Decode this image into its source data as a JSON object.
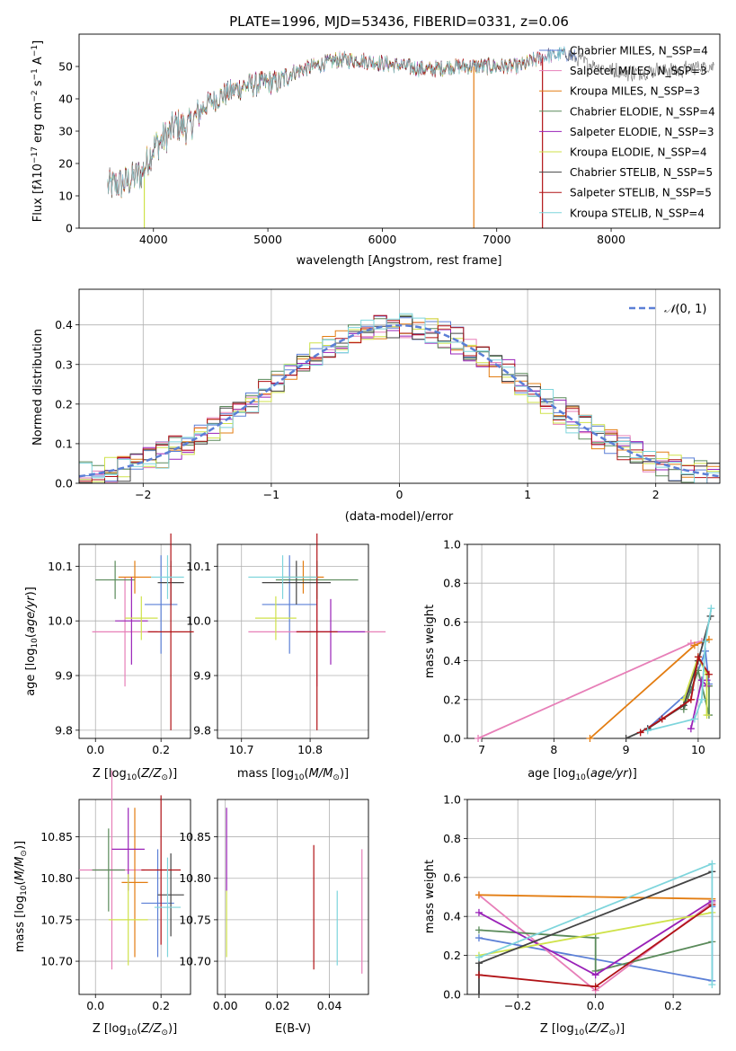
{
  "colors": {
    "series": [
      "#5b7fd6",
      "#e77fb8",
      "#e37d12",
      "#5a8a5a",
      "#9a22b8",
      "#cfe24a",
      "#444444",
      "#b11216",
      "#7ed5dc"
    ]
  },
  "chart_data": [
    {
      "type": "line",
      "title": "PLATE=1996, MJD=53436, FIBERID=0331, z=0.06",
      "xlabel": "wavelength [Angstrom, rest frame]",
      "ylabel": "Flux [f_λ 10^-17 erg cm^-2 s^-1 A^-1]",
      "xlim": [
        3350,
        8950
      ],
      "ylim": [
        0,
        60
      ],
      "xticks": [
        4000,
        5000,
        6000,
        7000,
        8000
      ],
      "yticks": [
        0,
        10,
        20,
        30,
        40,
        50
      ],
      "continuum": [
        [
          3600,
          13
        ],
        [
          3750,
          14
        ],
        [
          3900,
          17
        ],
        [
          4000,
          25
        ],
        [
          4100,
          28
        ],
        [
          4200,
          32
        ],
        [
          4300,
          31
        ],
        [
          4450,
          38
        ],
        [
          4600,
          41
        ],
        [
          4800,
          44
        ],
        [
          5000,
          45
        ],
        [
          5100,
          45
        ],
        [
          5200,
          48
        ],
        [
          5400,
          50
        ],
        [
          5600,
          52
        ],
        [
          5800,
          52
        ],
        [
          6000,
          51
        ],
        [
          6200,
          50
        ],
        [
          6400,
          49
        ],
        [
          6600,
          50
        ],
        [
          6800,
          50
        ],
        [
          7000,
          50
        ],
        [
          7200,
          50
        ],
        [
          7400,
          53
        ],
        [
          7600,
          54
        ],
        [
          7800,
          51
        ],
        [
          8000,
          49
        ],
        [
          8200,
          48
        ],
        [
          8400,
          49
        ],
        [
          8600,
          49
        ],
        [
          8800,
          50
        ]
      ],
      "legend": [
        "Chabrier MILES, N_SSP=4",
        "Salpeter MILES, N_SSP=3",
        "Kroupa MILES, N_SSP=3",
        "Chabrier ELODIE, N_SSP=4",
        "Salpeter ELODIE, N_SSP=3",
        "Kroupa ELODIE, N_SSP=4",
        "Chabrier STELIB, N_SSP=5",
        "Salpeter STELIB, N_SSP=5",
        "Kroupa STELIB, N_SSP=4"
      ],
      "legend_position": "right",
      "grid": false
    },
    {
      "type": "line",
      "xlabel": "(data-model)/error",
      "ylabel": "Normed distribution",
      "xlim": [
        -2.5,
        2.5
      ],
      "ylim": [
        0,
        0.49
      ],
      "xticks": [
        -2,
        -1,
        0,
        1,
        2
      ],
      "yticks": [
        0.0,
        0.1,
        0.2,
        0.3,
        0.4
      ],
      "bins": {
        "start": -2.5,
        "width": 0.1,
        "count": 50
      },
      "legend": [
        "N(0,1)"
      ],
      "legend_position": "top-right",
      "grid": true
    },
    {
      "type": "scatter",
      "xlabel": "Z [log10(Z/Z⊙)]",
      "ylabel": "age  [log10(age/yr)]",
      "xlim": [
        -0.05,
        0.29
      ],
      "ylim": [
        9.785,
        10.14
      ],
      "xticks": [
        0.0,
        0.2
      ],
      "yticks": [
        9.8,
        9.9,
        10.0,
        10.1
      ],
      "points": [
        {
          "x": 0.2,
          "xerr": 0.05,
          "y": 10.03,
          "yerr": 0.09
        },
        {
          "x": 0.09,
          "xerr": 0.1,
          "y": 9.98,
          "yerr": 0.1
        },
        {
          "x": 0.12,
          "xerr": 0.05,
          "y": 10.08,
          "yerr": 0.03
        },
        {
          "x": 0.06,
          "xerr": 0.06,
          "y": 10.075,
          "yerr": 0.035
        },
        {
          "x": 0.11,
          "xerr": 0.05,
          "y": 10.0,
          "yerr": 0.08
        },
        {
          "x": 0.14,
          "xerr": 0.05,
          "y": 10.005,
          "yerr": 0.04
        },
        {
          "x": 0.23,
          "xerr": 0.04,
          "y": 10.07,
          "yerr": 0.04
        },
        {
          "x": 0.23,
          "xerr": 0.07,
          "y": 9.98,
          "yerr": 0.18
        },
        {
          "x": 0.22,
          "xerr": 0.05,
          "y": 10.08,
          "yerr": 0.04
        }
      ],
      "grid": true
    },
    {
      "type": "scatter",
      "xlabel": "mass [log10(M/M⊙)]",
      "xlim": [
        10.665,
        10.885
      ],
      "ylim": [
        9.785,
        10.14
      ],
      "xticks": [
        10.7,
        10.8
      ],
      "yticks": [
        9.8,
        9.9,
        10.0,
        10.1
      ],
      "points": [
        {
          "x": 10.77,
          "xerr": 0.04,
          "y": 10.03,
          "yerr": 0.09
        },
        {
          "x": 10.81,
          "xerr": 0.1,
          "y": 9.98,
          "yerr": 0.1
        },
        {
          "x": 10.79,
          "xerr": 0.03,
          "y": 10.08,
          "yerr": 0.03
        },
        {
          "x": 10.81,
          "xerr": 0.06,
          "y": 10.075,
          "yerr": 0.035
        },
        {
          "x": 10.83,
          "xerr": 0.05,
          "y": 9.98,
          "yerr": 0.06
        },
        {
          "x": 10.75,
          "xerr": 0.03,
          "y": 10.005,
          "yerr": 0.04
        },
        {
          "x": 10.78,
          "xerr": 0.05,
          "y": 10.07,
          "yerr": 0.04
        },
        {
          "x": 10.81,
          "xerr": 0.03,
          "y": 9.98,
          "yerr": 0.18
        },
        {
          "x": 10.76,
          "xerr": 0.05,
          "y": 10.08,
          "yerr": 0.04
        }
      ],
      "grid": true
    },
    {
      "type": "line",
      "xlabel": "age  [log10(age/yr)]",
      "ylabel": "mass weight",
      "xlim": [
        6.8,
        10.3
      ],
      "ylim": [
        0,
        1.0
      ],
      "xticks": [
        7,
        8,
        9,
        10
      ],
      "yticks": [
        0.0,
        0.2,
        0.4,
        0.6,
        0.8,
        1.0
      ],
      "series": [
        {
          "points": [
            [
              9.3,
              0.05
            ],
            [
              9.9,
              0.25
            ],
            [
              10.1,
              0.45
            ],
            [
              10.15,
              0.28
            ]
          ]
        },
        {
          "points": [
            [
              6.95,
              0.0
            ],
            [
              9.9,
              0.49
            ],
            [
              10.05,
              0.5
            ]
          ]
        },
        {
          "points": [
            [
              8.5,
              0.0
            ],
            [
              9.95,
              0.48
            ],
            [
              10.15,
              0.51
            ]
          ]
        },
        {
          "points": [
            [
              9.8,
              0.15
            ],
            [
              10.0,
              0.35
            ],
            [
              10.15,
              0.12
            ],
            [
              10.15,
              0.27
            ]
          ]
        },
        {
          "points": [
            [
              9.9,
              0.05
            ],
            [
              10.05,
              0.3
            ],
            [
              10.12,
              0.27
            ],
            [
              10.12,
              0.3
            ]
          ]
        },
        {
          "points": [
            [
              9.8,
              0.2
            ],
            [
              10.0,
              0.42
            ],
            [
              10.12,
              0.33
            ],
            [
              10.12,
              0.12
            ]
          ]
        },
        {
          "points": [
            [
              9.0,
              0.0
            ],
            [
              9.3,
              0.05
            ],
            [
              9.8,
              0.17
            ],
            [
              10.0,
              0.4
            ],
            [
              10.17,
              0.63
            ]
          ]
        },
        {
          "points": [
            [
              9.2,
              0.03
            ],
            [
              9.5,
              0.1
            ],
            [
              9.9,
              0.2
            ],
            [
              10.0,
              0.42
            ],
            [
              10.15,
              0.33
            ]
          ]
        },
        {
          "points": [
            [
              9.3,
              0.04
            ],
            [
              9.95,
              0.1
            ],
            [
              10.05,
              0.2
            ],
            [
              10.1,
              0.5
            ],
            [
              10.18,
              0.67
            ]
          ]
        }
      ],
      "grid": true
    },
    {
      "type": "scatter",
      "xlabel": "Z [log10(Z/Z⊙)]",
      "ylabel": "mass [log10(M/M⊙)]",
      "xlim": [
        -0.05,
        0.29
      ],
      "ylim": [
        10.66,
        10.895
      ],
      "xticks": [
        0.0,
        0.2
      ],
      "yticks": [
        10.7,
        10.75,
        10.8,
        10.85
      ],
      "points": [
        {
          "x": 0.19,
          "xerr": 0.05,
          "y": 10.77,
          "yerr": 0.065
        },
        {
          "x": 0.05,
          "xerr": 0.1,
          "y": 10.81,
          "yerr": 0.12
        },
        {
          "x": 0.12,
          "xerr": 0.04,
          "y": 10.795,
          "yerr": 0.09
        },
        {
          "x": 0.04,
          "xerr": 0.05,
          "y": 10.81,
          "yerr": 0.05
        },
        {
          "x": 0.1,
          "xerr": 0.05,
          "y": 10.835,
          "yerr": 0.05
        },
        {
          "x": 0.1,
          "xerr": 0.06,
          "y": 10.75,
          "yerr": 0.055
        },
        {
          "x": 0.23,
          "xerr": 0.04,
          "y": 10.78,
          "yerr": 0.05
        },
        {
          "x": 0.2,
          "xerr": 0.06,
          "y": 10.81,
          "yerr": 0.09
        },
        {
          "x": 0.22,
          "xerr": 0.04,
          "y": 10.765,
          "yerr": 0.06
        }
      ],
      "grid": true
    },
    {
      "type": "scatter",
      "xlabel": "E(B-V)",
      "xlim": [
        -0.003,
        0.055
      ],
      "ylim": [
        10.66,
        10.895
      ],
      "xticks": [
        0.0,
        0.02,
        0.04
      ],
      "yticks": [
        10.7,
        10.75,
        10.8,
        10.85
      ],
      "points": [
        {
          "x": 0.0005,
          "y": 10.835,
          "yerr": 0.05
        },
        {
          "x": 0.0005,
          "y": 10.745,
          "yerr": 0.04
        },
        {
          "x": 0.034,
          "y": 10.765,
          "yerr": 0.075
        },
        {
          "x": 0.043,
          "y": 10.74,
          "yerr": 0.045
        },
        {
          "x": 0.0525,
          "y": 10.76,
          "yerr": 0.075
        }
      ],
      "grid": true
    },
    {
      "type": "line",
      "xlabel": "Z [log10(Z/Z⊙)]",
      "ylabel": "mass weight",
      "xlim": [
        -0.33,
        0.32
      ],
      "ylim": [
        0,
        1.0
      ],
      "xticks": [
        -0.2,
        0.0,
        0.2
      ],
      "yticks": [
        0.0,
        0.2,
        0.4,
        0.6,
        0.8,
        1.0
      ],
      "series": [
        {
          "points": [
            [
              -0.3,
              0.29
            ],
            [
              0.3,
              0.07
            ],
            [
              0.3,
              0.45
            ]
          ]
        },
        {
          "points": [
            [
              -0.3,
              0.51
            ],
            [
              0.0,
              0.02
            ],
            [
              0.3,
              0.47
            ]
          ]
        },
        {
          "points": [
            [
              -0.3,
              0.51
            ],
            [
              0.3,
              0.49
            ]
          ]
        },
        {
          "points": [
            [
              -0.3,
              0.33
            ],
            [
              0.0,
              0.29
            ],
            [
              0.0,
              0.12
            ],
            [
              0.3,
              0.27
            ]
          ]
        },
        {
          "points": [
            [
              -0.3,
              0.42
            ],
            [
              0.0,
              0.1
            ],
            [
              0.3,
              0.48
            ]
          ]
        },
        {
          "points": [
            [
              -0.3,
              0.2
            ],
            [
              0.3,
              0.42
            ]
          ]
        },
        {
          "points": [
            [
              -0.3,
              0.0
            ],
            [
              -0.3,
              0.16
            ],
            [
              0.3,
              0.63
            ]
          ]
        },
        {
          "points": [
            [
              -0.3,
              0.1
            ],
            [
              0.0,
              0.04
            ],
            [
              0.3,
              0.46
            ]
          ]
        },
        {
          "points": [
            [
              -0.3,
              0.19
            ],
            [
              0.3,
              0.67
            ],
            [
              0.3,
              0.05
            ]
          ]
        }
      ],
      "grid": true
    }
  ]
}
